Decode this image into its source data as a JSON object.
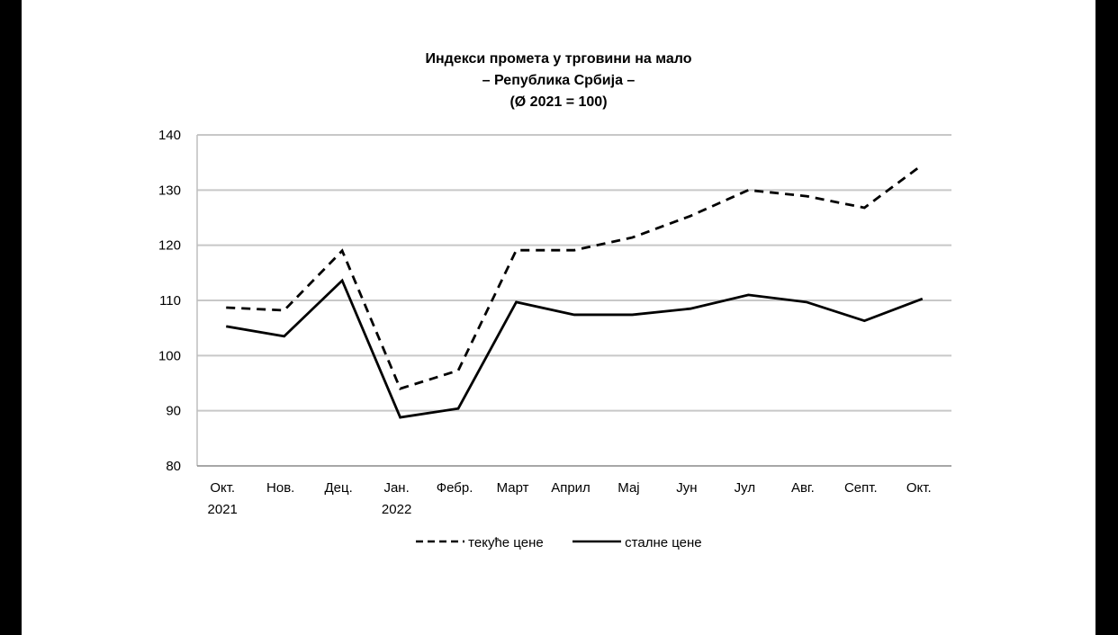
{
  "chart_data": {
    "type": "line",
    "title": "Индекси промета у трговини на мало",
    "subtitle": "– Република Србија –",
    "subtitle2": "(Ø 2021 = 100)",
    "xlabel": "",
    "ylabel": "",
    "ylim": [
      80,
      140
    ],
    "yticks": [
      "140",
      "130",
      "120",
      "110",
      "100",
      "90",
      "80"
    ],
    "grid": true,
    "legend_placement": "bottom",
    "categories": [
      [
        "Окт.",
        "2021"
      ],
      [
        "Нов."
      ],
      [
        "Дец."
      ],
      [
        "Јан.",
        "2022"
      ],
      [
        "Фебр."
      ],
      [
        "Март"
      ],
      [
        "Април"
      ],
      [
        "Мај"
      ],
      [
        "Јун"
      ],
      [
        "Јул"
      ],
      [
        "Авг."
      ],
      [
        "Септ."
      ],
      [
        "Окт."
      ]
    ],
    "series": [
      {
        "name": "текуће цене",
        "style": "dashed",
        "values": [
          108.7,
          108.2,
          119.0,
          94.0,
          97.3,
          119.1,
          119.1,
          121.4,
          125.3,
          130.0,
          128.9,
          126.8,
          134.6
        ]
      },
      {
        "name": "сталне цене",
        "style": "solid",
        "values": [
          105.3,
          103.5,
          113.6,
          88.8,
          90.4,
          109.7,
          107.4,
          107.4,
          108.5,
          111.0,
          109.7,
          106.3,
          110.3
        ]
      }
    ]
  }
}
